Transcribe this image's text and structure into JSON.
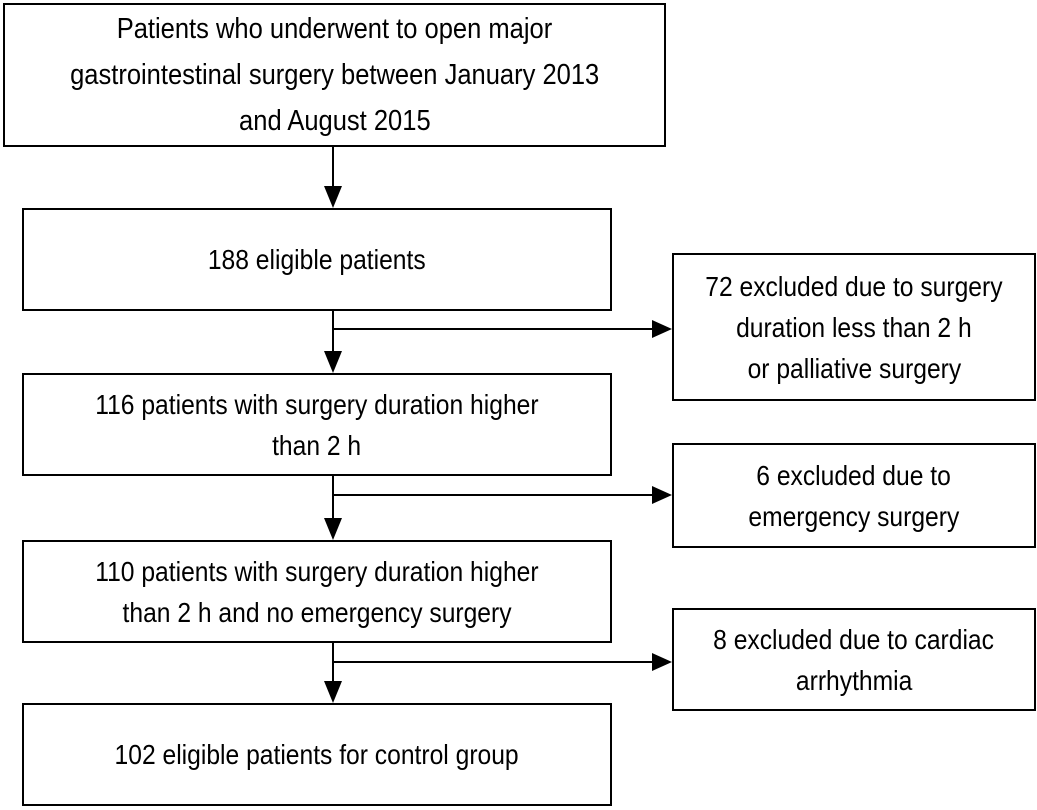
{
  "flow": {
    "boxes": {
      "enrollment": {
        "lines": [
          "Patients who underwent to open major",
          "gastrointestinal surgery between January 2013",
          "and August 2015"
        ]
      },
      "eligible": {
        "count": 188,
        "lines": [
          "188 eligible patients"
        ]
      },
      "duration": {
        "count": 116,
        "lines": [
          "116 patients with surgery duration higher",
          "than 2 h"
        ]
      },
      "no_emergency": {
        "count": 110,
        "lines": [
          "110 patients with surgery duration higher",
          "than 2 h and no emergency surgery"
        ]
      },
      "control": {
        "count": 102,
        "lines": [
          "102 eligible patients for control group"
        ]
      },
      "excl_duration": {
        "count": 72,
        "lines": [
          "72 excluded due to surgery",
          "duration less than 2 h",
          "or palliative surgery"
        ]
      },
      "excl_emergency": {
        "count": 6,
        "lines": [
          "6 excluded due to",
          "emergency surgery"
        ]
      },
      "excl_arrhythmia": {
        "count": 8,
        "lines": [
          "8 excluded due to cardiac",
          "arrhythmia"
        ]
      }
    },
    "edges": [
      {
        "from": "enrollment",
        "to": "eligible",
        "direction": "down"
      },
      {
        "from": "eligible",
        "to": "duration",
        "direction": "down"
      },
      {
        "from": "eligible",
        "to": "excl_duration",
        "direction": "right"
      },
      {
        "from": "duration",
        "to": "no_emergency",
        "direction": "down"
      },
      {
        "from": "duration",
        "to": "excl_emergency",
        "direction": "right"
      },
      {
        "from": "no_emergency",
        "to": "control",
        "direction": "down"
      },
      {
        "from": "no_emergency",
        "to": "excl_arrhythmia",
        "direction": "right"
      }
    ],
    "colors": {
      "background": "#ffffff",
      "border": "#000000",
      "text": "#000000"
    }
  }
}
